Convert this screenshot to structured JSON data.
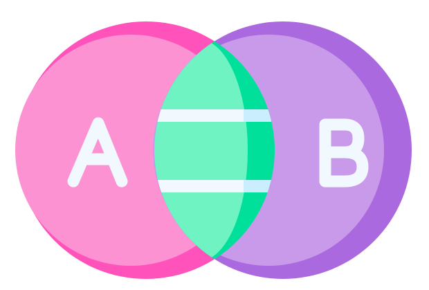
{
  "diagram": {
    "type": "venn",
    "sets": [
      {
        "id": "A",
        "label": "A",
        "fill": "#fd92d3",
        "shade": "#ff52bb"
      },
      {
        "id": "B",
        "label": "B",
        "fill": "#c99ae9",
        "shade": "#ab69e0"
      }
    ],
    "intersection": {
      "fill": "#6ff3c2",
      "shade": "#00e09a",
      "stripe": "#f1f9ff",
      "stripe_shade": "#cbeeff"
    },
    "label_color": "#f1f9ff"
  }
}
